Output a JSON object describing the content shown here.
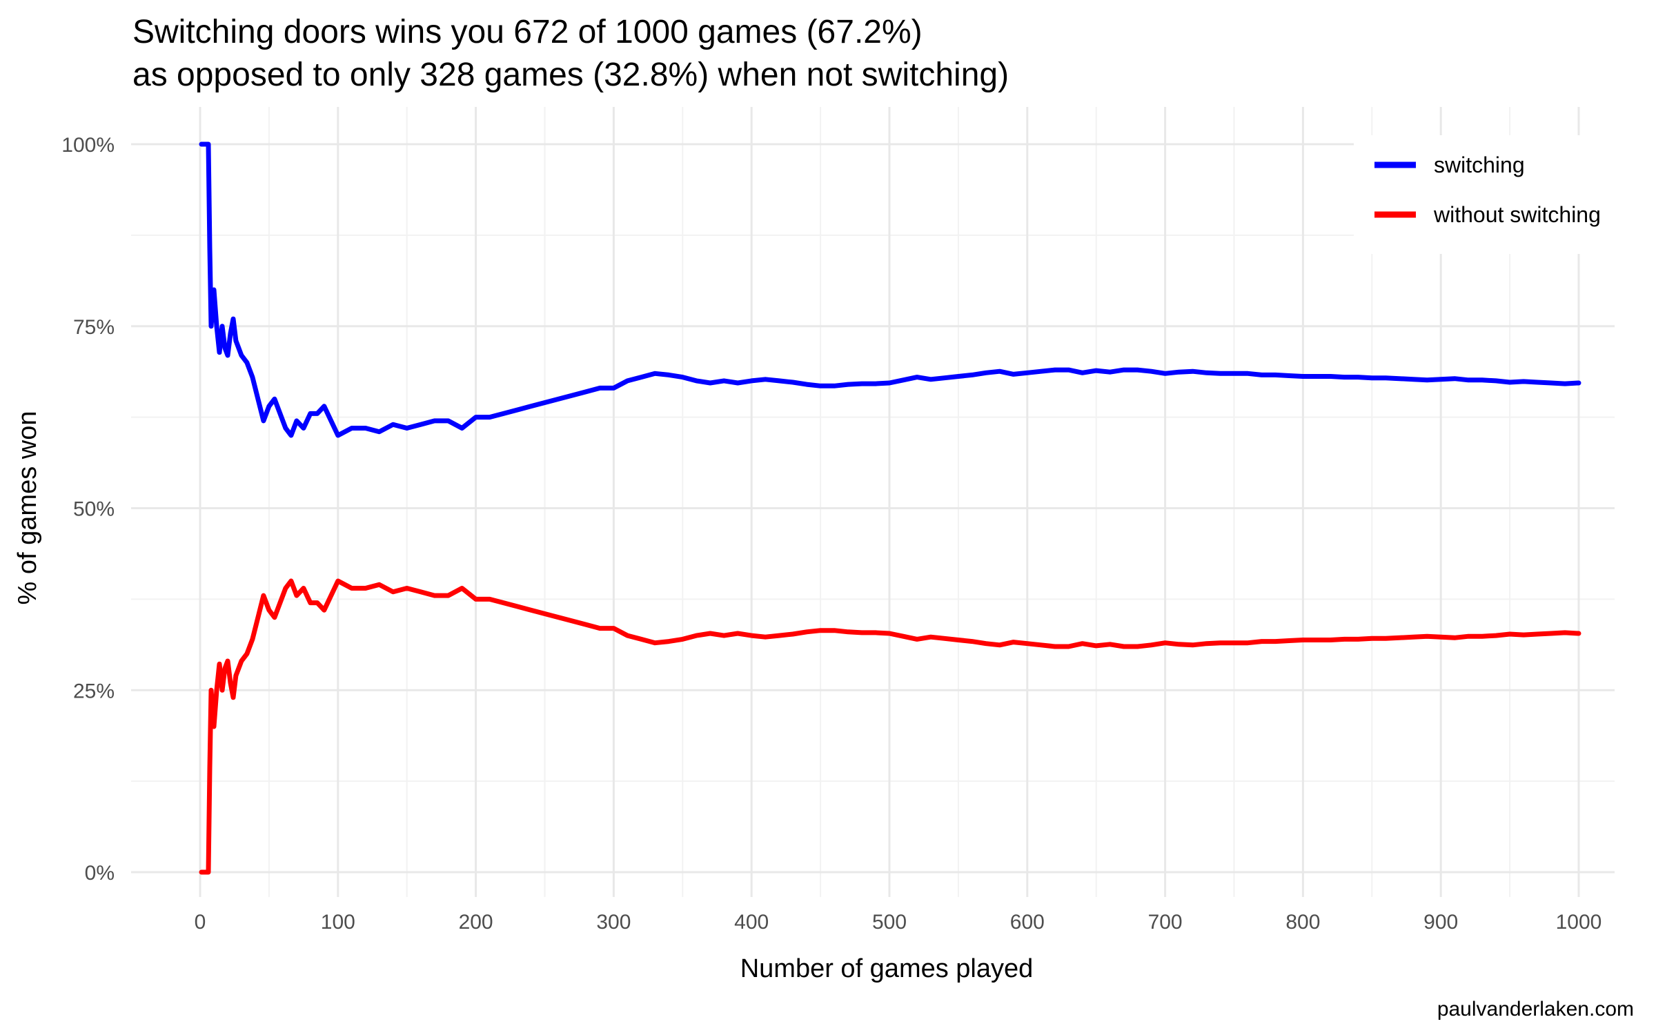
{
  "chart_data": {
    "type": "line",
    "title_line1": "Switching doors wins you 672 of 1000 games (67.2%)",
    "title_line2": "as opposed to only 328 games (32.8%) when not switching)",
    "xlabel": "Number of games played",
    "ylabel": "% of games won",
    "caption": "paulvanderlaken.com",
    "xlim": [
      0,
      1000
    ],
    "ylim": [
      0,
      1
    ],
    "x_ticks": [
      0,
      100,
      200,
      300,
      400,
      500,
      600,
      700,
      800,
      900,
      1000
    ],
    "x_tick_labels": [
      "0",
      "100",
      "200",
      "300",
      "400",
      "500",
      "600",
      "700",
      "800",
      "900",
      "1000"
    ],
    "y_ticks": [
      0,
      0.25,
      0.5,
      0.75,
      1.0
    ],
    "y_tick_labels": [
      "0%",
      "25%",
      "50%",
      "75%",
      "100%"
    ],
    "grid": true,
    "legend_position": "top-right",
    "series": [
      {
        "name": "switching",
        "color": "#0000ff",
        "points": [
          [
            1,
            1.0
          ],
          [
            6,
            1.0
          ],
          [
            7,
            0.857
          ],
          [
            8,
            0.75
          ],
          [
            10,
            0.8
          ],
          [
            12,
            0.75
          ],
          [
            14,
            0.714
          ],
          [
            16,
            0.75
          ],
          [
            18,
            0.72
          ],
          [
            20,
            0.71
          ],
          [
            22,
            0.74
          ],
          [
            24,
            0.76
          ],
          [
            26,
            0.73
          ],
          [
            28,
            0.72
          ],
          [
            30,
            0.71
          ],
          [
            34,
            0.7
          ],
          [
            38,
            0.68
          ],
          [
            42,
            0.65
          ],
          [
            46,
            0.62
          ],
          [
            50,
            0.64
          ],
          [
            54,
            0.65
          ],
          [
            58,
            0.63
          ],
          [
            62,
            0.61
          ],
          [
            66,
            0.6
          ],
          [
            70,
            0.62
          ],
          [
            75,
            0.61
          ],
          [
            80,
            0.63
          ],
          [
            85,
            0.63
          ],
          [
            90,
            0.64
          ],
          [
            95,
            0.62
          ],
          [
            100,
            0.6
          ],
          [
            110,
            0.61
          ],
          [
            120,
            0.61
          ],
          [
            130,
            0.605
          ],
          [
            140,
            0.615
          ],
          [
            150,
            0.61
          ],
          [
            160,
            0.615
          ],
          [
            170,
            0.62
          ],
          [
            180,
            0.62
          ],
          [
            190,
            0.61
          ],
          [
            200,
            0.625
          ],
          [
            210,
            0.625
          ],
          [
            220,
            0.63
          ],
          [
            230,
            0.635
          ],
          [
            240,
            0.64
          ],
          [
            250,
            0.645
          ],
          [
            260,
            0.65
          ],
          [
            270,
            0.655
          ],
          [
            280,
            0.66
          ],
          [
            290,
            0.665
          ],
          [
            300,
            0.665
          ],
          [
            310,
            0.675
          ],
          [
            320,
            0.68
          ],
          [
            330,
            0.685
          ],
          [
            340,
            0.683
          ],
          [
            350,
            0.68
          ],
          [
            360,
            0.675
          ],
          [
            370,
            0.672
          ],
          [
            380,
            0.675
          ],
          [
            390,
            0.672
          ],
          [
            400,
            0.675
          ],
          [
            410,
            0.677
          ],
          [
            420,
            0.675
          ],
          [
            430,
            0.673
          ],
          [
            440,
            0.67
          ],
          [
            450,
            0.668
          ],
          [
            460,
            0.668
          ],
          [
            470,
            0.67
          ],
          [
            480,
            0.671
          ],
          [
            490,
            0.671
          ],
          [
            500,
            0.672
          ],
          [
            510,
            0.676
          ],
          [
            520,
            0.68
          ],
          [
            530,
            0.677
          ],
          [
            540,
            0.679
          ],
          [
            550,
            0.681
          ],
          [
            560,
            0.683
          ],
          [
            570,
            0.686
          ],
          [
            580,
            0.688
          ],
          [
            590,
            0.684
          ],
          [
            600,
            0.686
          ],
          [
            610,
            0.688
          ],
          [
            620,
            0.69
          ],
          [
            630,
            0.69
          ],
          [
            640,
            0.686
          ],
          [
            650,
            0.689
          ],
          [
            660,
            0.687
          ],
          [
            670,
            0.69
          ],
          [
            680,
            0.69
          ],
          [
            690,
            0.688
          ],
          [
            700,
            0.685
          ],
          [
            710,
            0.687
          ],
          [
            720,
            0.688
          ],
          [
            730,
            0.686
          ],
          [
            740,
            0.685
          ],
          [
            750,
            0.685
          ],
          [
            760,
            0.685
          ],
          [
            770,
            0.683
          ],
          [
            780,
            0.683
          ],
          [
            790,
            0.682
          ],
          [
            800,
            0.681
          ],
          [
            810,
            0.681
          ],
          [
            820,
            0.681
          ],
          [
            830,
            0.68
          ],
          [
            840,
            0.68
          ],
          [
            850,
            0.679
          ],
          [
            860,
            0.679
          ],
          [
            870,
            0.678
          ],
          [
            880,
            0.677
          ],
          [
            890,
            0.676
          ],
          [
            900,
            0.677
          ],
          [
            910,
            0.678
          ],
          [
            920,
            0.676
          ],
          [
            930,
            0.676
          ],
          [
            940,
            0.675
          ],
          [
            950,
            0.673
          ],
          [
            960,
            0.674
          ],
          [
            970,
            0.673
          ],
          [
            980,
            0.672
          ],
          [
            990,
            0.671
          ],
          [
            1000,
            0.672
          ]
        ]
      },
      {
        "name": "without switching",
        "color": "#ff0000",
        "points": [
          [
            1,
            0.0
          ],
          [
            6,
            0.0
          ],
          [
            7,
            0.143
          ],
          [
            8,
            0.25
          ],
          [
            10,
            0.2
          ],
          [
            12,
            0.25
          ],
          [
            14,
            0.286
          ],
          [
            16,
            0.25
          ],
          [
            18,
            0.28
          ],
          [
            20,
            0.29
          ],
          [
            22,
            0.26
          ],
          [
            24,
            0.24
          ],
          [
            26,
            0.27
          ],
          [
            28,
            0.28
          ],
          [
            30,
            0.29
          ],
          [
            34,
            0.3
          ],
          [
            38,
            0.32
          ],
          [
            42,
            0.35
          ],
          [
            46,
            0.38
          ],
          [
            50,
            0.36
          ],
          [
            54,
            0.35
          ],
          [
            58,
            0.37
          ],
          [
            62,
            0.39
          ],
          [
            66,
            0.4
          ],
          [
            70,
            0.38
          ],
          [
            75,
            0.39
          ],
          [
            80,
            0.37
          ],
          [
            85,
            0.37
          ],
          [
            90,
            0.36
          ],
          [
            95,
            0.38
          ],
          [
            100,
            0.4
          ],
          [
            110,
            0.39
          ],
          [
            120,
            0.39
          ],
          [
            130,
            0.395
          ],
          [
            140,
            0.385
          ],
          [
            150,
            0.39
          ],
          [
            160,
            0.385
          ],
          [
            170,
            0.38
          ],
          [
            180,
            0.38
          ],
          [
            190,
            0.39
          ],
          [
            200,
            0.375
          ],
          [
            210,
            0.375
          ],
          [
            220,
            0.37
          ],
          [
            230,
            0.365
          ],
          [
            240,
            0.36
          ],
          [
            250,
            0.355
          ],
          [
            260,
            0.35
          ],
          [
            270,
            0.345
          ],
          [
            280,
            0.34
          ],
          [
            290,
            0.335
          ],
          [
            300,
            0.335
          ],
          [
            310,
            0.325
          ],
          [
            320,
            0.32
          ],
          [
            330,
            0.315
          ],
          [
            340,
            0.317
          ],
          [
            350,
            0.32
          ],
          [
            360,
            0.325
          ],
          [
            370,
            0.328
          ],
          [
            380,
            0.325
          ],
          [
            390,
            0.328
          ],
          [
            400,
            0.325
          ],
          [
            410,
            0.323
          ],
          [
            420,
            0.325
          ],
          [
            430,
            0.327
          ],
          [
            440,
            0.33
          ],
          [
            450,
            0.332
          ],
          [
            460,
            0.332
          ],
          [
            470,
            0.33
          ],
          [
            480,
            0.329
          ],
          [
            490,
            0.329
          ],
          [
            500,
            0.328
          ],
          [
            510,
            0.324
          ],
          [
            520,
            0.32
          ],
          [
            530,
            0.323
          ],
          [
            540,
            0.321
          ],
          [
            550,
            0.319
          ],
          [
            560,
            0.317
          ],
          [
            570,
            0.314
          ],
          [
            580,
            0.312
          ],
          [
            590,
            0.316
          ],
          [
            600,
            0.314
          ],
          [
            610,
            0.312
          ],
          [
            620,
            0.31
          ],
          [
            630,
            0.31
          ],
          [
            640,
            0.314
          ],
          [
            650,
            0.311
          ],
          [
            660,
            0.313
          ],
          [
            670,
            0.31
          ],
          [
            680,
            0.31
          ],
          [
            690,
            0.312
          ],
          [
            700,
            0.315
          ],
          [
            710,
            0.313
          ],
          [
            720,
            0.312
          ],
          [
            730,
            0.314
          ],
          [
            740,
            0.315
          ],
          [
            750,
            0.315
          ],
          [
            760,
            0.315
          ],
          [
            770,
            0.317
          ],
          [
            780,
            0.317
          ],
          [
            790,
            0.318
          ],
          [
            800,
            0.319
          ],
          [
            810,
            0.319
          ],
          [
            820,
            0.319
          ],
          [
            830,
            0.32
          ],
          [
            840,
            0.32
          ],
          [
            850,
            0.321
          ],
          [
            860,
            0.321
          ],
          [
            870,
            0.322
          ],
          [
            880,
            0.323
          ],
          [
            890,
            0.324
          ],
          [
            900,
            0.323
          ],
          [
            910,
            0.322
          ],
          [
            920,
            0.324
          ],
          [
            930,
            0.324
          ],
          [
            940,
            0.325
          ],
          [
            950,
            0.327
          ],
          [
            960,
            0.326
          ],
          [
            970,
            0.327
          ],
          [
            980,
            0.328
          ],
          [
            990,
            0.329
          ],
          [
            1000,
            0.328
          ]
        ]
      }
    ]
  }
}
